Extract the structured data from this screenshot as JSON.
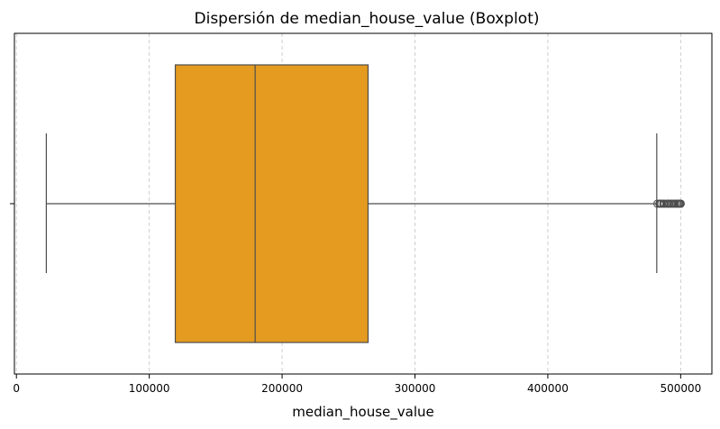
{
  "chart_data": {
    "type": "boxplot",
    "title": "Dispersión de median_house_value (Boxplot)",
    "xlabel": "median_house_value",
    "ylabel": "",
    "orientation": "horizontal",
    "xlim": [
      -1500,
      523500
    ],
    "x_ticks": [
      0,
      100000,
      200000,
      300000,
      400000,
      500000
    ],
    "x_tick_labels": [
      "0",
      "100000",
      "200000",
      "300000",
      "400000",
      "500000"
    ],
    "grid": "x-dashed",
    "box": {
      "whisker_low": 22500,
      "q1": 119600,
      "median": 179700,
      "q3": 264700,
      "whisker_high": 482000
    },
    "outliers": [
      482500,
      484000,
      484700,
      485400,
      486900,
      487800,
      489600,
      490400,
      491200,
      492500,
      493400,
      494400,
      495500,
      496600,
      497600,
      498400,
      499000,
      499700,
      500000,
      500001
    ],
    "colors": {
      "box_fill": "#e49b1f",
      "line": "#4d4d4d",
      "grid": "#c9c9c9",
      "axes": "#000000"
    }
  }
}
